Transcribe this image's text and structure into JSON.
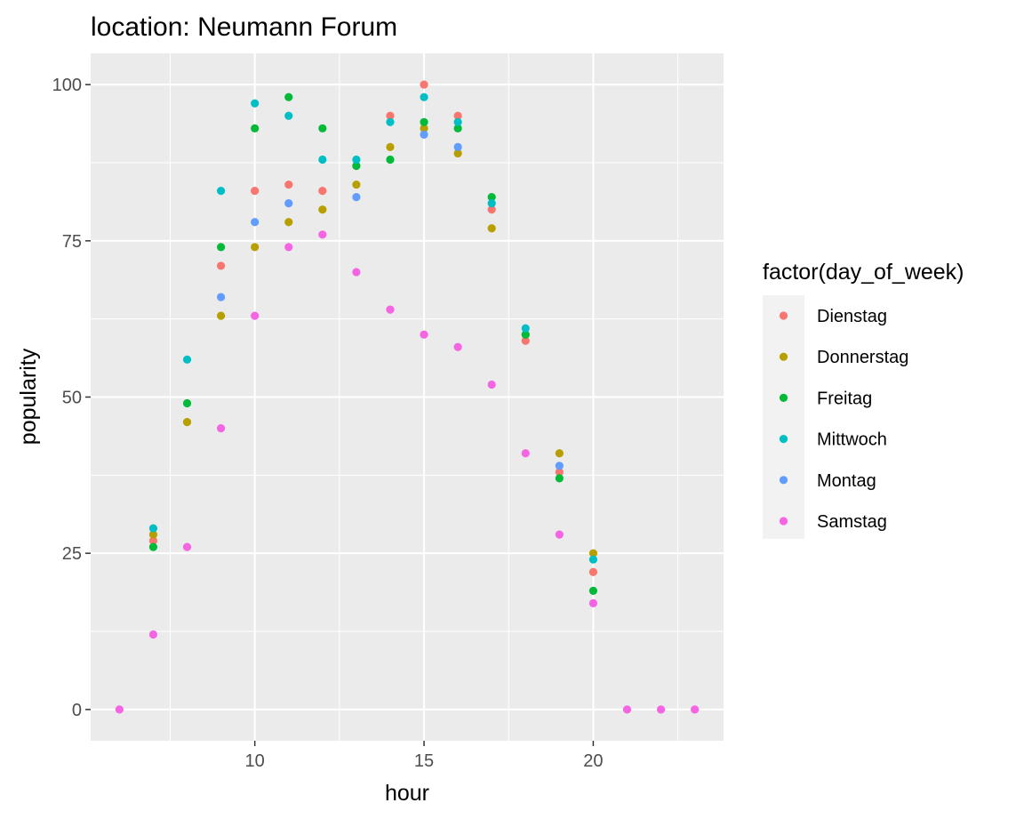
{
  "chart_data": {
    "type": "scatter",
    "title": "location: Neumann Forum",
    "xlabel": "hour",
    "ylabel": "popularity",
    "xlim": [
      5.15,
      23.85
    ],
    "ylim": [
      -5,
      105
    ],
    "x_ticks": [
      10,
      15,
      20
    ],
    "x_tick_labels": [
      "10",
      "15",
      "20"
    ],
    "y_ticks": [
      0,
      25,
      50,
      75,
      100
    ],
    "y_tick_labels": [
      "0",
      "25",
      "50",
      "75",
      "100"
    ],
    "grid": true,
    "legend": {
      "title": "factor(day_of_week)",
      "position": "right"
    },
    "series": [
      {
        "name": "Dienstag",
        "color": "#F8766D",
        "points": [
          [
            7,
            27
          ],
          [
            9,
            71
          ],
          [
            10,
            83
          ],
          [
            11,
            84
          ],
          [
            12,
            83
          ],
          [
            13,
            87
          ],
          [
            14,
            95
          ],
          [
            15,
            100
          ],
          [
            16,
            95
          ],
          [
            17,
            80
          ],
          [
            18,
            59
          ],
          [
            19,
            38
          ],
          [
            20,
            22
          ]
        ]
      },
      {
        "name": "Donnerstag",
        "color": "#B79F00",
        "points": [
          [
            7,
            28
          ],
          [
            8,
            46
          ],
          [
            9,
            63
          ],
          [
            10,
            74
          ],
          [
            11,
            78
          ],
          [
            12,
            80
          ],
          [
            13,
            84
          ],
          [
            14,
            90
          ],
          [
            15,
            93
          ],
          [
            16,
            89
          ],
          [
            17,
            77
          ],
          [
            18,
            60
          ],
          [
            19,
            41
          ],
          [
            20,
            25
          ]
        ]
      },
      {
        "name": "Freitag",
        "color": "#00BA38",
        "points": [
          [
            7,
            26
          ],
          [
            8,
            49
          ],
          [
            9,
            74
          ],
          [
            10,
            93
          ],
          [
            11,
            98
          ],
          [
            12,
            93
          ],
          [
            13,
            87
          ],
          [
            14,
            88
          ],
          [
            15,
            94
          ],
          [
            16,
            93
          ],
          [
            17,
            82
          ],
          [
            18,
            60
          ],
          [
            19,
            37
          ],
          [
            20,
            19
          ]
        ]
      },
      {
        "name": "Mittwoch",
        "color": "#00BFC4",
        "points": [
          [
            7,
            29
          ],
          [
            8,
            56
          ],
          [
            9,
            83
          ],
          [
            10,
            97
          ],
          [
            11,
            95
          ],
          [
            12,
            88
          ],
          [
            13,
            88
          ],
          [
            14,
            94
          ],
          [
            15,
            98
          ],
          [
            16,
            94
          ],
          [
            17,
            81
          ],
          [
            18,
            61
          ],
          [
            20,
            24
          ]
        ]
      },
      {
        "name": "Montag",
        "color": "#619CFF",
        "points": [
          [
            9,
            66
          ],
          [
            10,
            78
          ],
          [
            11,
            81
          ],
          [
            13,
            82
          ],
          [
            15,
            92
          ],
          [
            16,
            90
          ],
          [
            19,
            39
          ]
        ]
      },
      {
        "name": "Samstag",
        "color": "#F564E3",
        "points": [
          [
            6,
            0
          ],
          [
            7,
            12
          ],
          [
            8,
            26
          ],
          [
            9,
            45
          ],
          [
            10,
            63
          ],
          [
            11,
            74
          ],
          [
            12,
            76
          ],
          [
            13,
            70
          ],
          [
            14,
            64
          ],
          [
            15,
            60
          ],
          [
            16,
            58
          ],
          [
            17,
            52
          ],
          [
            18,
            41
          ],
          [
            19,
            28
          ],
          [
            20,
            17
          ],
          [
            21,
            0
          ],
          [
            22,
            0
          ],
          [
            23,
            0
          ]
        ]
      }
    ]
  }
}
